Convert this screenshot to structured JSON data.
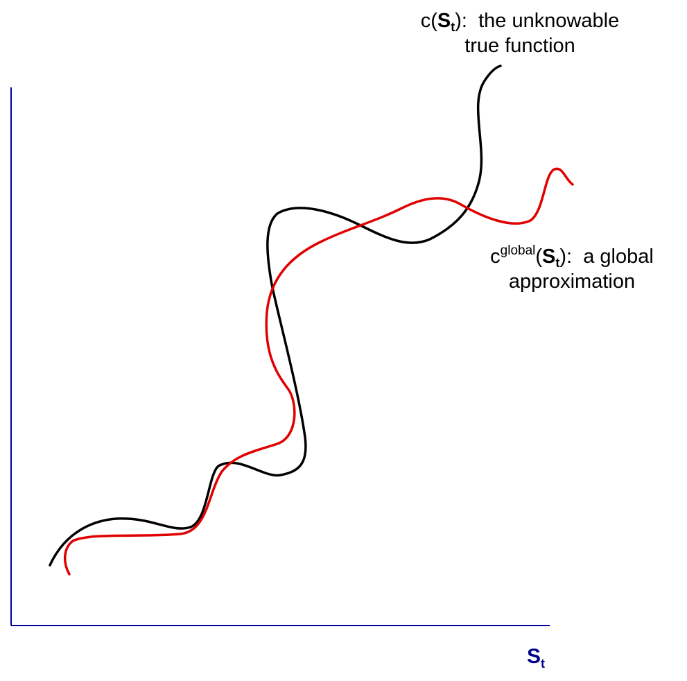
{
  "labels": {
    "true_function": {
      "func": "c(",
      "var": "S",
      "sub": "t",
      "close": "):",
      "desc_line1": "the unknowable",
      "desc_line2": "true function"
    },
    "global_approx": {
      "func": "c",
      "sup": "global",
      "open": "(",
      "var": "S",
      "sub": "t",
      "close": "):",
      "desc_line1": "a global",
      "desc_line2": "approximation"
    },
    "x_axis": {
      "var": "S",
      "sub": "t"
    }
  },
  "colors": {
    "axis": "#0000a0",
    "axis_label": "#00008b",
    "true_curve": "#000000",
    "approx_curve": "#e00000"
  }
}
